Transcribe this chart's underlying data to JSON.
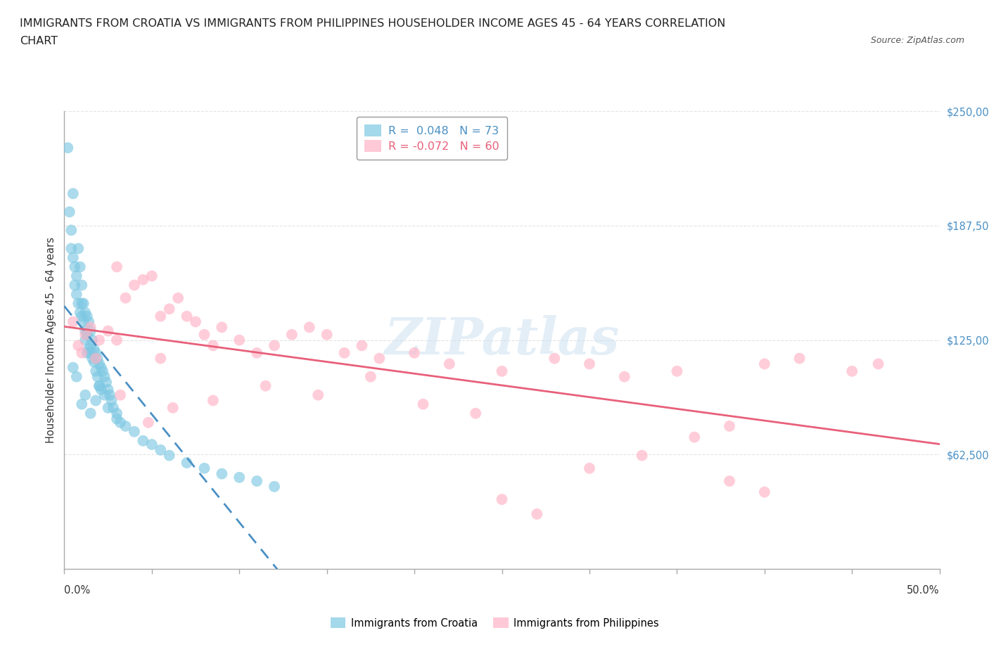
{
  "title_line1": "IMMIGRANTS FROM CROATIA VS IMMIGRANTS FROM PHILIPPINES HOUSEHOLDER INCOME AGES 45 - 64 YEARS CORRELATION",
  "title_line2": "CHART",
  "source": "Source: ZipAtlas.com",
  "ylabel": "Householder Income Ages 45 - 64 years",
  "xlim": [
    0,
    50
  ],
  "ylim": [
    0,
    250000
  ],
  "yticks": [
    0,
    62500,
    125000,
    187500,
    250000
  ],
  "croatia_color": "#7ec8e3",
  "croatia_line_color": "#4a90c4",
  "philippines_color": "#ffb3c6",
  "philippines_line_color": "#e8607a",
  "croatia_R": 0.048,
  "croatia_N": 73,
  "philippines_R": -0.072,
  "philippines_N": 60,
  "croatia_x": [
    0.2,
    0.3,
    0.4,
    0.4,
    0.5,
    0.5,
    0.6,
    0.6,
    0.7,
    0.7,
    0.8,
    0.8,
    0.9,
    0.9,
    1.0,
    1.0,
    1.0,
    1.1,
    1.1,
    1.2,
    1.2,
    1.2,
    1.3,
    1.3,
    1.3,
    1.4,
    1.4,
    1.5,
    1.5,
    1.5,
    1.6,
    1.6,
    1.7,
    1.7,
    1.8,
    1.8,
    1.9,
    1.9,
    2.0,
    2.0,
    2.1,
    2.1,
    2.2,
    2.3,
    2.3,
    2.4,
    2.5,
    2.6,
    2.7,
    2.8,
    3.0,
    3.2,
    3.5,
    4.0,
    4.5,
    5.0,
    5.5,
    6.0,
    7.0,
    8.0,
    9.0,
    10.0,
    11.0,
    12.0,
    1.0,
    1.2,
    0.5,
    0.7,
    1.5,
    2.0,
    1.8,
    2.5,
    3.0
  ],
  "croatia_y": [
    230000,
    195000,
    185000,
    175000,
    205000,
    170000,
    165000,
    155000,
    160000,
    150000,
    175000,
    145000,
    165000,
    140000,
    155000,
    145000,
    138000,
    145000,
    135000,
    140000,
    130000,
    125000,
    138000,
    128000,
    118000,
    135000,
    120000,
    130000,
    122000,
    118000,
    125000,
    115000,
    120000,
    113000,
    118000,
    108000,
    115000,
    105000,
    112000,
    100000,
    110000,
    98000,
    108000,
    105000,
    95000,
    102000,
    98000,
    95000,
    92000,
    88000,
    85000,
    80000,
    78000,
    75000,
    70000,
    68000,
    65000,
    62000,
    58000,
    55000,
    52000,
    50000,
    48000,
    45000,
    90000,
    95000,
    110000,
    105000,
    85000,
    100000,
    92000,
    88000,
    82000
  ],
  "philippines_x": [
    0.5,
    0.8,
    1.0,
    1.2,
    1.5,
    1.8,
    2.0,
    2.5,
    3.0,
    3.5,
    4.0,
    4.5,
    5.0,
    5.5,
    6.0,
    6.5,
    7.0,
    7.5,
    8.0,
    8.5,
    9.0,
    10.0,
    11.0,
    12.0,
    13.0,
    14.0,
    15.0,
    16.0,
    17.0,
    18.0,
    20.0,
    22.0,
    25.0,
    28.0,
    30.0,
    32.0,
    35.0,
    38.0,
    40.0,
    42.0,
    46.5,
    3.2,
    4.8,
    6.2,
    8.5,
    11.5,
    14.5,
    17.5,
    20.5,
    23.5,
    25.0,
    27.0,
    30.0,
    33.0,
    36.0,
    38.0,
    40.0,
    45.0,
    3.0,
    5.5
  ],
  "philippines_y": [
    135000,
    122000,
    118000,
    128000,
    132000,
    115000,
    125000,
    130000,
    165000,
    148000,
    155000,
    158000,
    160000,
    138000,
    142000,
    148000,
    138000,
    135000,
    128000,
    122000,
    132000,
    125000,
    118000,
    122000,
    128000,
    132000,
    128000,
    118000,
    122000,
    115000,
    118000,
    112000,
    108000,
    115000,
    112000,
    105000,
    108000,
    78000,
    112000,
    115000,
    112000,
    95000,
    80000,
    88000,
    92000,
    100000,
    95000,
    105000,
    90000,
    85000,
    38000,
    30000,
    55000,
    62000,
    72000,
    48000,
    42000,
    108000,
    125000,
    115000
  ],
  "watermark_text": "ZIPatlas",
  "background_color": "#ffffff",
  "gridcolor": "#dddddd"
}
